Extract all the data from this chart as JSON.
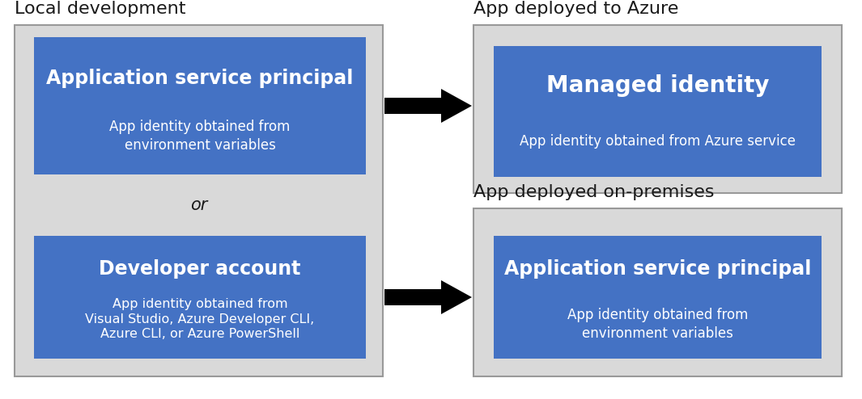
{
  "bg_color": "#ffffff",
  "light_gray": "#d9d9d9",
  "blue": "#4472c4",
  "border_gray": "#999999",
  "text_black": "#1a1a1a",
  "text_white": "#ffffff",
  "left_box_label": "Local development",
  "right_top_box_label": "App deployed to Azure",
  "right_bottom_box_label": "App deployed on-premises",
  "box1_title": "Application service principal",
  "box1_sub": "App identity obtained from\nenvironment variables",
  "or_text": "or",
  "box2_title": "Developer account",
  "box2_sub": "App identity obtained from\nVisual Studio, Azure Developer CLI,\nAzure CLI, or Azure PowerShell",
  "box3_title": "Managed identity",
  "box3_sub": "App identity obtained from Azure service",
  "box4_title": "Application service principal",
  "box4_sub": "App identity obtained from\nenvironment variables",
  "figw": 10.65,
  "figh": 4.94,
  "dpi": 100
}
